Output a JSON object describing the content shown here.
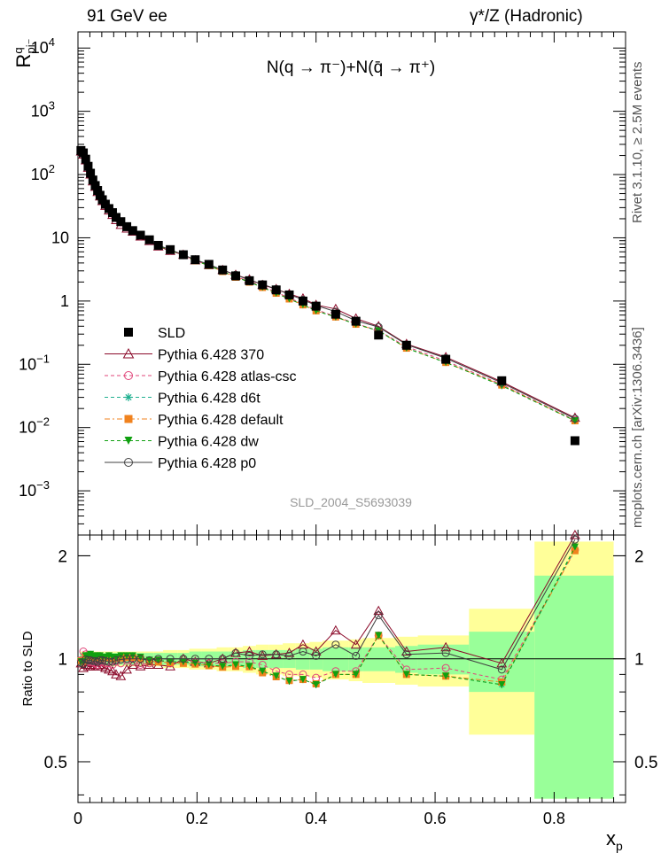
{
  "header": {
    "energy_label": "91 GeV ee",
    "process_label": "γ*/Z (Hadronic)",
    "observable_label": "N(q → π⁻)+N(q̄ → π⁺)",
    "analysis_id": "SLD_2004_S5693039"
  },
  "side_labels": {
    "rivet": "Rivet 3.1.10, ≥ 2.5M events",
    "mcplots": "mcplots.cern.ch [arXiv:1306.3436]"
  },
  "chart_data": [
    {
      "type": "scatter",
      "panel": "main",
      "ylabel": "R^q_pi⁻",
      "yscale": "log",
      "ylim": [
        0.0002,
        18000
      ],
      "xlim": [
        0,
        0.92
      ],
      "yticks": [
        {
          "value": 10000,
          "label": "10",
          "sup": "4"
        },
        {
          "value": 1000,
          "label": "10",
          "sup": "3"
        },
        {
          "value": 100,
          "label": "10",
          "sup": "2"
        },
        {
          "value": 10,
          "label": "10",
          "sup": ""
        },
        {
          "value": 1,
          "label": "1",
          "sup": ""
        },
        {
          "value": 0.1,
          "label": "10",
          "sup": "−1"
        },
        {
          "value": 0.01,
          "label": "10",
          "sup": "−2"
        },
        {
          "value": 0.001,
          "label": "10",
          "sup": "−3"
        }
      ],
      "legend_placement": "lower-left",
      "x": [
        0.005,
        0.009,
        0.013,
        0.017,
        0.021,
        0.025,
        0.029,
        0.033,
        0.037,
        0.041,
        0.046,
        0.052,
        0.058,
        0.064,
        0.072,
        0.082,
        0.092,
        0.105,
        0.12,
        0.135,
        0.155,
        0.177,
        0.197,
        0.22,
        0.243,
        0.265,
        0.288,
        0.31,
        0.333,
        0.355,
        0.378,
        0.4,
        0.433,
        0.467,
        0.505,
        0.552,
        0.618,
        0.712,
        0.835
      ],
      "series": [
        {
          "name": "SLD",
          "color": "#000000",
          "marker": "square",
          "values": [
            240,
            220,
            175,
            135,
            105,
            82,
            67,
            56,
            47,
            40,
            34,
            29,
            25,
            21,
            18,
            15,
            13,
            11,
            9.3,
            7.6,
            6.5,
            5.4,
            4.5,
            3.8,
            3.1,
            2.5,
            2.1,
            1.8,
            1.5,
            1.25,
            1.0,
            0.83,
            0.62,
            0.48,
            0.29,
            0.2,
            0.12,
            0.055,
            0.0062
          ]
        },
        {
          "name": "Pythia 6.428 370",
          "color": "#8b0a2a",
          "marker": "triangle-open",
          "values": [
            232,
            207,
            168,
            128,
            100,
            78,
            64,
            53,
            45,
            38,
            32,
            27,
            23,
            19,
            16,
            14,
            12.5,
            10.5,
            8.9,
            7.3,
            6.2,
            5.4,
            4.4,
            3.7,
            3.1,
            2.6,
            2.2,
            1.8,
            1.55,
            1.3,
            1.1,
            0.87,
            0.75,
            0.53,
            0.4,
            0.21,
            0.13,
            0.053,
            0.0143
          ]
        },
        {
          "name": "Pythia 6.428 atlas-csc",
          "color": "#e0457a",
          "marker": "circle-open",
          "dash": "4,3",
          "values": [
            238,
            230,
            180,
            132,
            103,
            80,
            65,
            54,
            46,
            39,
            33,
            28,
            24,
            20.5,
            17.5,
            14.8,
            12.8,
            10.6,
            9.0,
            7.5,
            6.3,
            5.3,
            4.4,
            3.7,
            3.0,
            2.45,
            2.05,
            1.72,
            1.38,
            1.12,
            0.9,
            0.73,
            0.57,
            0.44,
            0.34,
            0.19,
            0.113,
            0.048,
            0.013
          ]
        },
        {
          "name": "Pythia 6.428 d6t",
          "color": "#20b090",
          "marker": "star",
          "dash": "4,3",
          "values": [
            236,
            215,
            178,
            138,
            108,
            84,
            68,
            57,
            48,
            40.5,
            34.5,
            29.5,
            25.3,
            21.3,
            18.3,
            15.3,
            13.2,
            11.1,
            9.2,
            7.5,
            6.4,
            5.3,
            4.35,
            3.65,
            2.95,
            2.4,
            2.0,
            1.65,
            1.33,
            1.08,
            0.87,
            0.7,
            0.56,
            0.43,
            0.34,
            0.18,
            0.107,
            0.046,
            0.0128
          ]
        },
        {
          "name": "Pythia 6.428 default",
          "color": "#f0821e",
          "marker": "square",
          "dash": "6,3,2,3",
          "values": [
            237,
            217,
            177,
            137,
            107,
            83,
            67.5,
            56.5,
            47.5,
            40.2,
            34.2,
            29.2,
            25,
            21.1,
            18.1,
            15.2,
            13.1,
            11.0,
            9.15,
            7.45,
            6.35,
            5.25,
            4.33,
            3.63,
            2.93,
            2.38,
            1.99,
            1.64,
            1.33,
            1.08,
            0.87,
            0.7,
            0.56,
            0.43,
            0.34,
            0.18,
            0.107,
            0.047,
            0.0128
          ]
        },
        {
          "name": "Pythia 6.428 dw",
          "color": "#10a010",
          "marker": "triangle-down",
          "dash": "4,3",
          "values": [
            236,
            216,
            178,
            138,
            108,
            84,
            68,
            57,
            48,
            40.5,
            34.5,
            29.5,
            25.3,
            21.3,
            18.3,
            15.3,
            13.2,
            11.1,
            9.2,
            7.5,
            6.4,
            5.3,
            4.35,
            3.65,
            2.95,
            2.4,
            2.0,
            1.65,
            1.33,
            1.08,
            0.87,
            0.7,
            0.56,
            0.43,
            0.34,
            0.18,
            0.107,
            0.046,
            0.0128
          ]
        },
        {
          "name": "Pythia 6.428 p0",
          "color": "#404040",
          "marker": "circle-open",
          "values": [
            234,
            212,
            174,
            134,
            104,
            81,
            66,
            55,
            46.5,
            39.5,
            33.5,
            28.5,
            24.5,
            20.8,
            17.9,
            15.0,
            13.0,
            11.0,
            9.2,
            7.6,
            6.5,
            5.4,
            4.5,
            3.8,
            3.1,
            2.6,
            2.15,
            1.85,
            1.55,
            1.27,
            1.05,
            0.85,
            0.68,
            0.49,
            0.39,
            0.205,
            0.125,
            0.051,
            0.0138
          ]
        }
      ]
    },
    {
      "type": "scatter",
      "panel": "ratio",
      "ylabel": "Ratio to SLD",
      "xlabel": "x_p",
      "yscale": "log",
      "ylim": [
        0.38,
        2.3
      ],
      "xlim": [
        0,
        0.92
      ],
      "xticks": [
        0,
        0.2,
        0.4,
        0.6,
        0.8
      ],
      "yticks": [
        0.5,
        1,
        2
      ],
      "band_edges": [
        0.003,
        0.007,
        0.011,
        0.015,
        0.019,
        0.023,
        0.027,
        0.031,
        0.035,
        0.039,
        0.043,
        0.049,
        0.055,
        0.061,
        0.067,
        0.077,
        0.087,
        0.097,
        0.113,
        0.127,
        0.143,
        0.167,
        0.187,
        0.207,
        0.233,
        0.253,
        0.277,
        0.299,
        0.321,
        0.344,
        0.366,
        0.389,
        0.411,
        0.455,
        0.478,
        0.533,
        0.571,
        0.657,
        0.767,
        0.9
      ],
      "band_inner": [
        0.04,
        0.04,
        0.04,
        0.04,
        0.04,
        0.04,
        0.04,
        0.04,
        0.04,
        0.04,
        0.04,
        0.04,
        0.04,
        0.04,
        0.04,
        0.04,
        0.04,
        0.04,
        0.04,
        0.04,
        0.04,
        0.04,
        0.05,
        0.05,
        0.05,
        0.05,
        0.06,
        0.06,
        0.06,
        0.06,
        0.07,
        0.07,
        0.08,
        0.08,
        0.08,
        0.09,
        0.1,
        0.2,
        0.75
      ],
      "band_outer": [
        0.05,
        0.05,
        0.05,
        0.05,
        0.05,
        0.05,
        0.05,
        0.05,
        0.05,
        0.05,
        0.05,
        0.05,
        0.05,
        0.05,
        0.05,
        0.05,
        0.05,
        0.05,
        0.05,
        0.05,
        0.06,
        0.06,
        0.07,
        0.07,
        0.08,
        0.08,
        0.09,
        0.1,
        0.1,
        0.11,
        0.11,
        0.12,
        0.13,
        0.14,
        0.15,
        0.16,
        0.17,
        0.4,
        1.2
      ],
      "series": [
        {
          "name": "Pythia 6.428 370",
          "values": [
            0.97,
            0.94,
            0.96,
            0.95,
            0.95,
            0.95,
            0.96,
            0.95,
            0.96,
            0.95,
            0.94,
            0.93,
            0.92,
            0.9,
            0.89,
            0.93,
            0.96,
            0.95,
            0.96,
            0.96,
            0.95,
            1.0,
            0.98,
            0.97,
            1.0,
            1.04,
            1.05,
            1.02,
            1.03,
            1.04,
            1.1,
            1.05,
            1.21,
            1.1,
            1.38,
            1.05,
            1.08,
            0.97,
            2.3
          ]
        },
        {
          "name": "Pythia 6.428 atlas-csc",
          "values": [
            0.99,
            1.05,
            1.03,
            0.98,
            0.98,
            0.98,
            0.97,
            0.96,
            0.98,
            0.98,
            0.97,
            0.97,
            0.96,
            0.98,
            0.97,
            0.99,
            0.98,
            0.96,
            0.97,
            0.99,
            0.97,
            0.98,
            0.98,
            0.97,
            0.97,
            0.98,
            0.98,
            0.96,
            0.92,
            0.9,
            0.9,
            0.88,
            0.92,
            0.92,
            1.17,
            0.93,
            0.94,
            0.87,
            2.08
          ]
        },
        {
          "name": "Pythia 6.428 d6t",
          "values": [
            0.98,
            0.98,
            1.02,
            1.02,
            1.03,
            1.02,
            1.01,
            1.02,
            1.02,
            1.01,
            1.01,
            1.02,
            1.01,
            1.01,
            1.02,
            1.02,
            1.02,
            1.01,
            0.99,
            0.99,
            0.98,
            0.98,
            0.97,
            0.96,
            0.95,
            0.96,
            0.95,
            0.92,
            0.89,
            0.86,
            0.87,
            0.84,
            0.9,
            0.9,
            1.17,
            0.9,
            0.89,
            0.84,
            2.1
          ]
        },
        {
          "name": "Pythia 6.428 default",
          "values": [
            0.985,
            0.985,
            1.01,
            1.015,
            1.02,
            1.015,
            1.005,
            1.01,
            1.01,
            1.005,
            1.005,
            1.005,
            1.0,
            1.005,
            1.005,
            1.01,
            1.01,
            1.0,
            0.985,
            0.98,
            0.975,
            0.97,
            0.965,
            0.955,
            0.945,
            0.95,
            0.948,
            0.91,
            0.886,
            0.864,
            0.87,
            0.845,
            0.9,
            0.9,
            1.17,
            0.9,
            0.89,
            0.855,
            2.07
          ]
        },
        {
          "name": "Pythia 6.428 dw",
          "values": [
            0.98,
            0.98,
            1.02,
            1.02,
            1.03,
            1.02,
            1.01,
            1.02,
            1.02,
            1.01,
            1.01,
            1.02,
            1.01,
            1.01,
            1.02,
            1.02,
            1.02,
            1.01,
            0.99,
            0.99,
            0.98,
            0.98,
            0.97,
            0.96,
            0.95,
            0.96,
            0.95,
            0.92,
            0.89,
            0.86,
            0.87,
            0.84,
            0.9,
            0.9,
            1.17,
            0.9,
            0.89,
            0.84,
            2.12
          ]
        },
        {
          "name": "Pythia 6.428 p0",
          "values": [
            0.975,
            0.965,
            0.995,
            0.99,
            0.99,
            0.985,
            0.985,
            0.98,
            0.99,
            0.99,
            0.985,
            0.98,
            0.98,
            0.99,
            0.995,
            1.0,
            1.0,
            1.0,
            0.99,
            1.0,
            1.0,
            1.0,
            1.0,
            1.0,
            1.0,
            1.04,
            1.02,
            1.03,
            1.03,
            1.02,
            1.05,
            1.02,
            1.1,
            1.02,
            1.34,
            1.03,
            1.04,
            0.93,
            2.23
          ]
        }
      ]
    }
  ]
}
